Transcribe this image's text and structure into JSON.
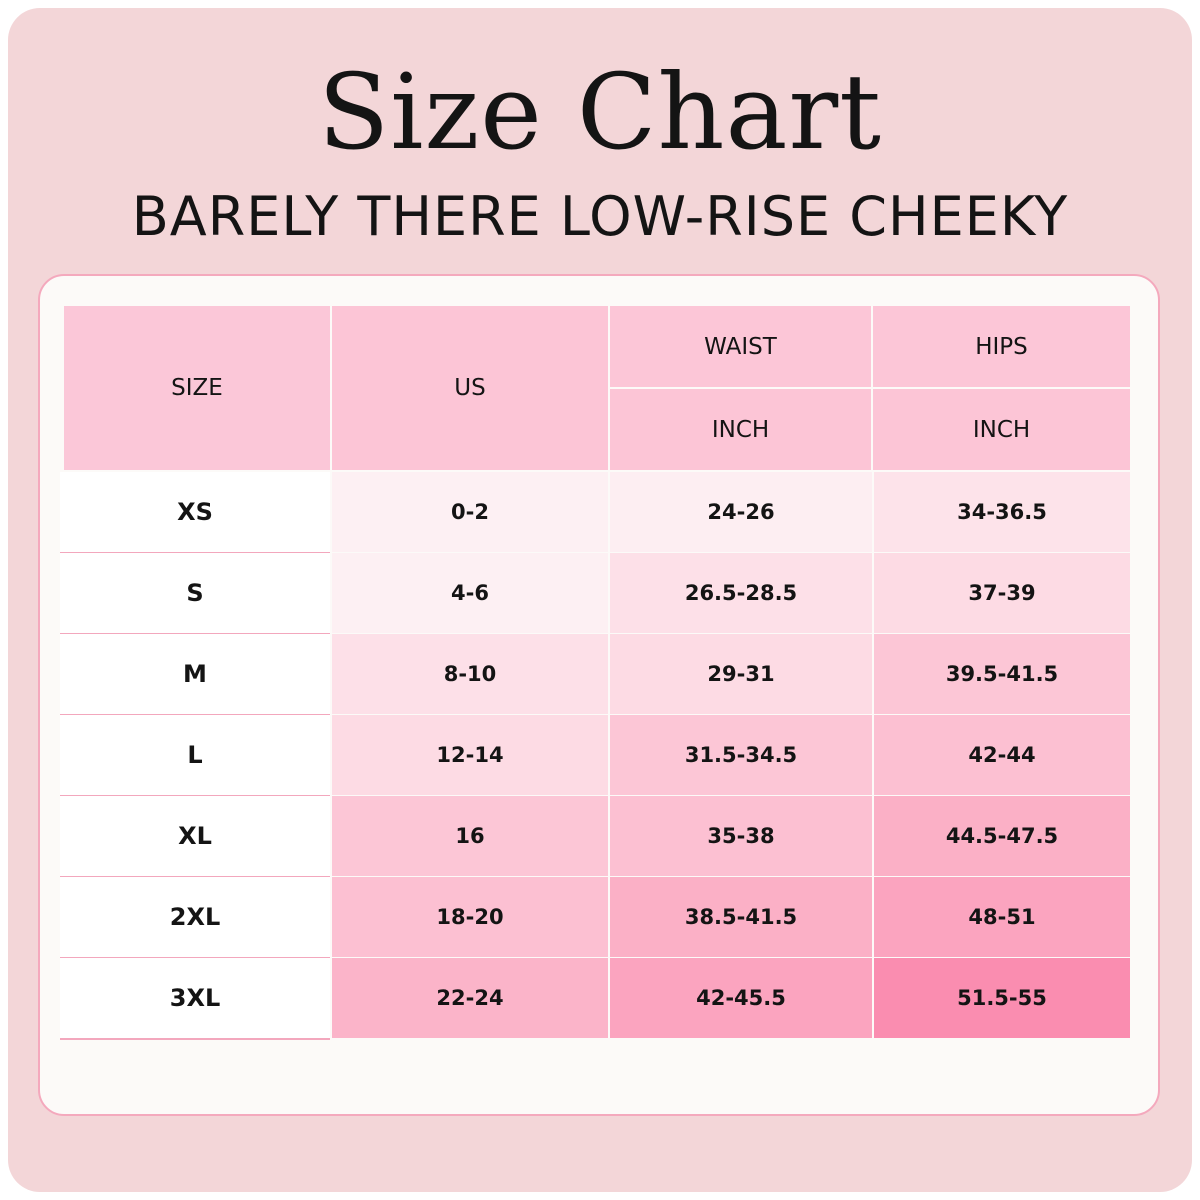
{
  "title": "Size Chart",
  "subtitle": "BARELY THERE LOW-RISE CHEEKY",
  "colors": {
    "page_background": "#f3d6d8",
    "card_background": "#fcfaf8",
    "card_border": "#f4a9bd",
    "header_fill": "#fcc5d6",
    "text": "#141414"
  },
  "table": {
    "headers": {
      "size": "SIZE",
      "us": "US",
      "waist": "WAIST",
      "hips": "HIPS",
      "waist_unit": "INCH",
      "hips_unit": "INCH"
    },
    "rows": [
      {
        "size": "XS",
        "us": "0-2",
        "waist": "24-26",
        "hips": "34-36.5"
      },
      {
        "size": "S",
        "us": "4-6",
        "waist": "26.5-28.5",
        "hips": "37-39"
      },
      {
        "size": "M",
        "us": "8-10",
        "waist": "29-31",
        "hips": "39.5-41.5"
      },
      {
        "size": "L",
        "us": "12-14",
        "waist": "31.5-34.5",
        "hips": "42-44"
      },
      {
        "size": "XL",
        "us": "16",
        "waist": "35-38",
        "hips": "44.5-47.5"
      },
      {
        "size": "2XL",
        "us": "18-20",
        "waist": "38.5-41.5",
        "hips": "48-51"
      },
      {
        "size": "3XL",
        "us": "22-24",
        "waist": "42-45.5",
        "hips": "51.5-55"
      }
    ],
    "row_colors": [
      {
        "us": "#fdf0f3",
        "waist": "#fdeef2",
        "hips": "#fde3ea"
      },
      {
        "us": "#fdf0f3",
        "waist": "#fde0e8",
        "hips": "#fddbe4"
      },
      {
        "us": "#fde0e8",
        "waist": "#fddbe4",
        "hips": "#fcc6d6"
      },
      {
        "us": "#fddbe4",
        "waist": "#fcc6d6",
        "hips": "#fcc0d2"
      },
      {
        "us": "#fcc6d6",
        "waist": "#fcc0d2",
        "hips": "#fbb0c6"
      },
      {
        "us": "#fcc0d2",
        "waist": "#fbb0c6",
        "hips": "#fba4bf"
      },
      {
        "us": "#fbb4c9",
        "waist": "#fba4bf",
        "hips": "#fa8db0"
      }
    ]
  }
}
